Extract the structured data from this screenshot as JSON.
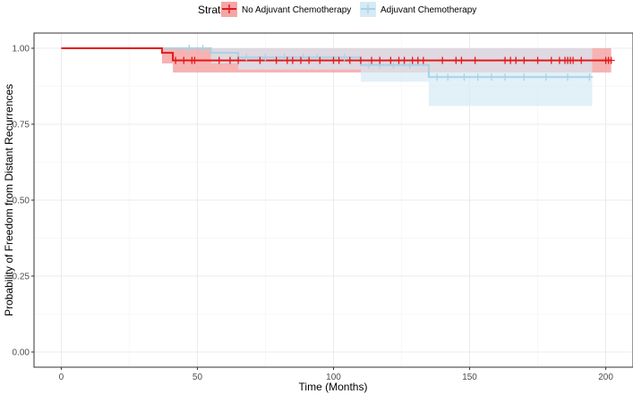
{
  "chart_data": {
    "type": "line",
    "xlabel": "Time (Months)",
    "ylabel": "Probability of Freedom from Distant Recurrences",
    "xlim": [
      -10,
      210
    ],
    "ylim": [
      -0.05,
      1.05
    ],
    "x_ticks": [
      0,
      50,
      100,
      150,
      200
    ],
    "x_tick_labels": [
      "0",
      "50",
      "100",
      "150",
      "200"
    ],
    "y_ticks": [
      0,
      0.25,
      0.5,
      0.75,
      1
    ],
    "y_tick_labels": [
      "0.00",
      "0.25",
      "0.50",
      "0.75",
      "1.00"
    ],
    "grid": true,
    "legend": {
      "title": "Strata",
      "position": "top"
    },
    "series": [
      {
        "name": "No Adjuvant Chemotherapy",
        "color": "#e41a1c",
        "fill": "#f4a6a6",
        "step_x": [
          0,
          37,
          37,
          41,
          41,
          202
        ],
        "step_y": [
          1.0,
          1.0,
          0.985,
          0.985,
          0.96,
          0.96
        ],
        "ci": [
          {
            "x0": 37,
            "x1": 41,
            "lower": 0.95,
            "upper": 1.0
          },
          {
            "x0": 41,
            "x1": 202,
            "lower": 0.92,
            "upper": 1.0
          }
        ],
        "censor_x": [
          42,
          45,
          48,
          49,
          58,
          62,
          65,
          73,
          79,
          83,
          85,
          88,
          91,
          95,
          100,
          102,
          106,
          110,
          114,
          117,
          121,
          124,
          126,
          129,
          131,
          133,
          140,
          145,
          147,
          152,
          163,
          165,
          167,
          170,
          175,
          180,
          183,
          185,
          186,
          187,
          188,
          191,
          200,
          201,
          202
        ],
        "censor_y": 0.96
      },
      {
        "name": "Adjuvant Chemotherapy",
        "color": "#a6d4e7",
        "fill": "#d6eaf5",
        "step_x": [
          0,
          55,
          55,
          65,
          65,
          110,
          110,
          135,
          135,
          195
        ],
        "step_y": [
          1.0,
          1.0,
          0.985,
          0.985,
          0.97,
          0.97,
          0.945,
          0.945,
          0.905,
          0.905
        ],
        "ci": [
          {
            "x0": 55,
            "x1": 65,
            "lower": 0.95,
            "upper": 1.0
          },
          {
            "x0": 65,
            "x1": 110,
            "lower": 0.93,
            "upper": 1.0
          },
          {
            "x0": 110,
            "x1": 135,
            "lower": 0.89,
            "upper": 1.0
          },
          {
            "x0": 135,
            "x1": 195,
            "lower": 0.81,
            "upper": 1.0
          }
        ],
        "censor_x": [
          47,
          52,
          68,
          75,
          82,
          89,
          94,
          104,
          113,
          117,
          122,
          128,
          138,
          142,
          148,
          153,
          158,
          163,
          170,
          178,
          186,
          194
        ],
        "censor_y_by_segment": true
      }
    ]
  }
}
